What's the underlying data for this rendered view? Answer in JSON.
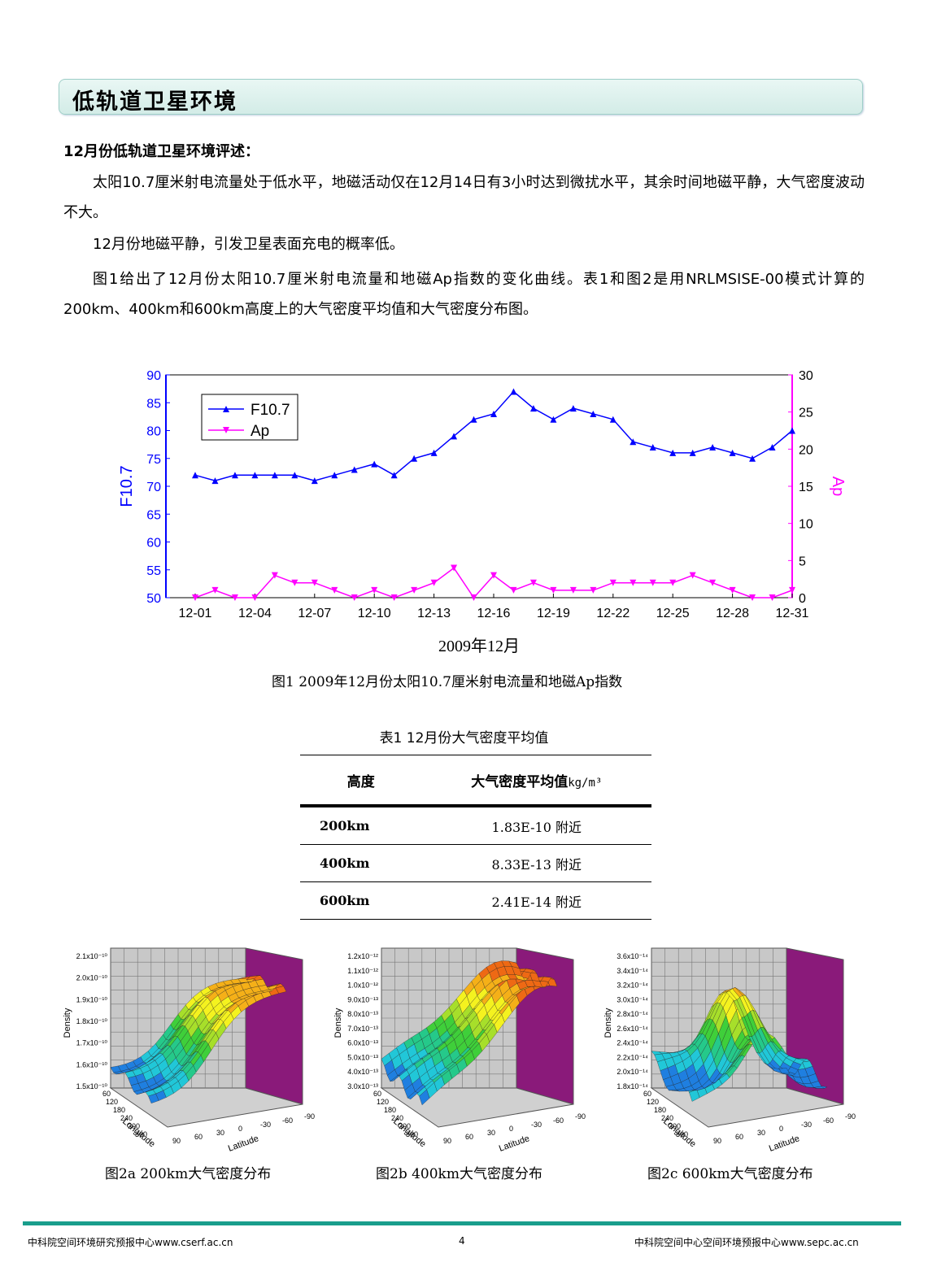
{
  "banner": {
    "title": "低轨道卫星环境"
  },
  "review": {
    "heading": "12月份低轨道卫星环境评述：",
    "p1": "太阳10.7厘米射电流量处于低水平，地磁活动仅在12月14日有3小时达到微扰水平，其余时间地磁平静，大气密度波动不大。",
    "p2": "12月份地磁平静，引发卫星表面充电的概率低。",
    "p3": "图1给出了12月份太阳10.7厘米射电流量和地磁Ap指数的变化曲线。表1和图2是用NRLMSISE-00模式计算的200km、400km和600km高度上的大气密度平均值和大气密度分布图。"
  },
  "chart_data": {
    "type": "line",
    "title": "",
    "xlabel": "2009年12月",
    "ylabel": "F10.7",
    "y2label": "Ap",
    "x": [
      "12-01",
      "12-02",
      "12-03",
      "12-04",
      "12-05",
      "12-06",
      "12-07",
      "12-08",
      "12-09",
      "12-10",
      "12-11",
      "12-12",
      "12-13",
      "12-14",
      "12-15",
      "12-16",
      "12-17",
      "12-18",
      "12-19",
      "12-20",
      "12-21",
      "12-22",
      "12-23",
      "12-24",
      "12-25",
      "12-26",
      "12-27",
      "12-28",
      "12-29",
      "12-30",
      "12-31"
    ],
    "xticks": [
      "12-01",
      "12-04",
      "12-07",
      "12-10",
      "12-13",
      "12-16",
      "12-19",
      "12-22",
      "12-25",
      "12-28",
      "12-31"
    ],
    "ylim": [
      50,
      90
    ],
    "y2lim": [
      0,
      30
    ],
    "yticks": [
      50,
      55,
      60,
      65,
      70,
      75,
      80,
      85,
      90
    ],
    "y2ticks": [
      0,
      5,
      10,
      15,
      20,
      25,
      30
    ],
    "legend_position": "top-left",
    "series": [
      {
        "name": "F10.7",
        "axis": "left",
        "color": "#0000ff",
        "marker": "triangle-up",
        "values": [
          72,
          71,
          72,
          72,
          72,
          72,
          71,
          72,
          73,
          74,
          72,
          75,
          76,
          79,
          82,
          83,
          87,
          84,
          82,
          84,
          83,
          82,
          78,
          77,
          76,
          76,
          77,
          76,
          75,
          77,
          80
        ]
      },
      {
        "name": "Ap",
        "axis": "right",
        "color": "#ff00ff",
        "marker": "triangle-down",
        "values": [
          0,
          1,
          0,
          0,
          3,
          2,
          2,
          1,
          0,
          1,
          0,
          1,
          2,
          4,
          0,
          3,
          1,
          2,
          1,
          1,
          1,
          2,
          2,
          2,
          2,
          3,
          2,
          1,
          0,
          0,
          1
        ]
      }
    ]
  },
  "figure1": {
    "caption": "图1 2009年12月份太阳10.7厘米射电流量和地磁Ap指数"
  },
  "table1": {
    "title": "表1   12月份大气密度平均值",
    "col1": "高度",
    "col2": "大气密度平均值",
    "unit": "kg/m³",
    "rows": [
      {
        "alt": "200km",
        "val": "1.83E-10 附近"
      },
      {
        "alt": "400km",
        "val": "8.33E-13  附近"
      },
      {
        "alt": "600km",
        "val": "2.41E-14  附近"
      }
    ]
  },
  "figure2": {
    "plots": [
      {
        "caption": "图2a 200km大气密度分布",
        "zticks": [
          "2.1x10⁻¹⁰",
          "2.0x10⁻¹⁰",
          "1.9x10⁻¹⁰",
          "1.8x10⁻¹⁰",
          "1.7x10⁻¹⁰",
          "1.6x10⁻¹⁰",
          "1.5x10⁻¹⁰"
        ]
      },
      {
        "caption": "图2b  400km大气密度分布",
        "zticks": [
          "1.2x10⁻¹²",
          "1.1x10⁻¹²",
          "1.0x10⁻¹²",
          "9.0x10⁻¹³",
          "8.0x10⁻¹³",
          "7.0x10⁻¹³",
          "6.0x10⁻¹³",
          "5.0x10⁻¹³",
          "4.0x10⁻¹³",
          "3.0x10⁻¹³"
        ]
      },
      {
        "caption": "图2c  600km大气密度分布",
        "zticks": [
          "3.6x10⁻¹⁴",
          "3.4x10⁻¹⁴",
          "3.2x10⁻¹⁴",
          "3.0x10⁻¹⁴",
          "2.8x10⁻¹⁴",
          "2.6x10⁻¹⁴",
          "2.4x10⁻¹⁴",
          "2.2x10⁻¹⁴",
          "2.0x10⁻¹⁴",
          "1.8x10⁻¹⁴"
        ]
      }
    ],
    "zlabel": "Density",
    "longitude_label": "Longitude",
    "latitude_label": "Latitude",
    "longitude_ticks": [
      "60",
      "120",
      "180",
      "240",
      "300",
      "360"
    ],
    "latitude_ticks": [
      "90",
      "60",
      "30",
      "0",
      "-30",
      "-60",
      "-90"
    ]
  },
  "footer": {
    "left": "中科院空间环境研究预报中心www.cserf.ac.cn",
    "page": "4",
    "right": "中科院空间中心空间环境预报中心www.sepc.ac.cn"
  }
}
